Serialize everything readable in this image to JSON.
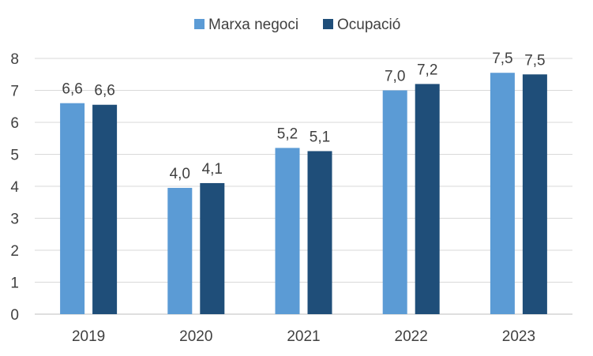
{
  "chart_data": {
    "type": "bar",
    "categories": [
      "2019",
      "2020",
      "2021",
      "2022",
      "2023"
    ],
    "series": [
      {
        "name": "Marxa negoci",
        "values": [
          6.6,
          3.95,
          5.2,
          7.0,
          7.55
        ],
        "labels": [
          "6,6",
          "4,0",
          "5,2",
          "7,0",
          "7,5"
        ]
      },
      {
        "name": "Ocupació",
        "values": [
          6.55,
          4.1,
          5.1,
          7.2,
          7.5
        ],
        "labels": [
          "6,6",
          "4,1",
          "5,1",
          "7,2",
          "7,5"
        ]
      }
    ],
    "colors": [
      "#5b9bd5",
      "#1f4e79"
    ],
    "ylim": [
      0,
      8
    ],
    "yticks": [
      "0",
      "1",
      "2",
      "3",
      "4",
      "5",
      "6",
      "7",
      "8"
    ],
    "grid": true,
    "legend_position": "top"
  }
}
